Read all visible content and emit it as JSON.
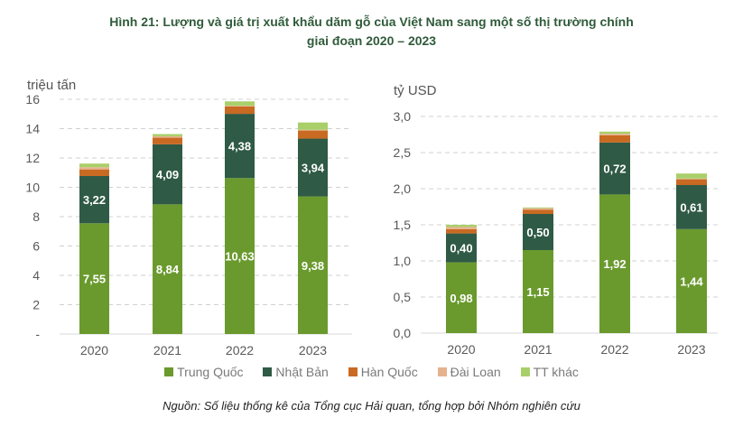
{
  "title_line1": "Hình 21: Lượng  và giá trị xuất khẩu dăm gỗ của Việt Nam sang một số thị trường chính",
  "title_line2": "giai đoạn 2020 – 2023",
  "source": "Nguồn: Số liệu thống kê của Tổng cục Hải quan, tổng hợp bởi Nhóm nghiên cứu",
  "legend": [
    {
      "name": "Trung Quốc",
      "color": "#6a9a2e"
    },
    {
      "name": "Nhật Bản",
      "color": "#2f5a45"
    },
    {
      "name": "Hàn Quốc",
      "color": "#c96a22"
    },
    {
      "name": "Đài Loan",
      "color": "#e4b28e"
    },
    {
      "name": "TT khác",
      "color": "#a9cf6a"
    }
  ],
  "chart_data": [
    {
      "type": "bar",
      "stacked": true,
      "ylabel": "triệu tấn",
      "ylim": [
        0,
        16
      ],
      "yticks": [
        "-",
        "2",
        "4",
        "6",
        "8",
        "10",
        "12",
        "14",
        "16"
      ],
      "grid": true,
      "categories": [
        "2020",
        "2021",
        "2022",
        "2023"
      ],
      "series": [
        {
          "name": "Trung Quốc",
          "values": [
            7.55,
            8.84,
            10.63,
            9.38
          ],
          "labels": [
            "7,55",
            "8,84",
            "10,63",
            "9,38"
          ]
        },
        {
          "name": "Nhật Bản",
          "values": [
            3.22,
            4.09,
            4.38,
            3.94
          ],
          "labels": [
            "3,22",
            "4,09",
            "4,38",
            "3,94"
          ]
        },
        {
          "name": "Hàn Quốc",
          "values": [
            0.45,
            0.45,
            0.5,
            0.55
          ]
        },
        {
          "name": "Đài Loan",
          "values": [
            0.15,
            0.1,
            0.05,
            0.05
          ]
        },
        {
          "name": "TT khác",
          "values": [
            0.25,
            0.15,
            0.3,
            0.5
          ]
        }
      ]
    },
    {
      "type": "bar",
      "stacked": true,
      "ylabel": "tỷ USD",
      "ylim": [
        0,
        3
      ],
      "yticks": [
        "0,0",
        "0,5",
        "1,0",
        "1,5",
        "2,0",
        "2,5",
        "3,0"
      ],
      "grid": true,
      "categories": [
        "2020",
        "2021",
        "2022",
        "2023"
      ],
      "series": [
        {
          "name": "Trung Quốc",
          "values": [
            0.98,
            1.15,
            1.92,
            1.44
          ],
          "labels": [
            "0,98",
            "1,15",
            "1,92",
            "1,44"
          ]
        },
        {
          "name": "Nhật Bản",
          "values": [
            0.4,
            0.5,
            0.72,
            0.61
          ],
          "labels": [
            "0,40",
            "0,50",
            "0,72",
            "0,61"
          ]
        },
        {
          "name": "Hàn Quốc",
          "values": [
            0.06,
            0.06,
            0.1,
            0.08
          ]
        },
        {
          "name": "Đài Loan",
          "values": [
            0.03,
            0.02,
            0.02,
            0.01
          ]
        },
        {
          "name": "TT khác",
          "values": [
            0.03,
            0.01,
            0.03,
            0.07
          ]
        }
      ]
    }
  ]
}
